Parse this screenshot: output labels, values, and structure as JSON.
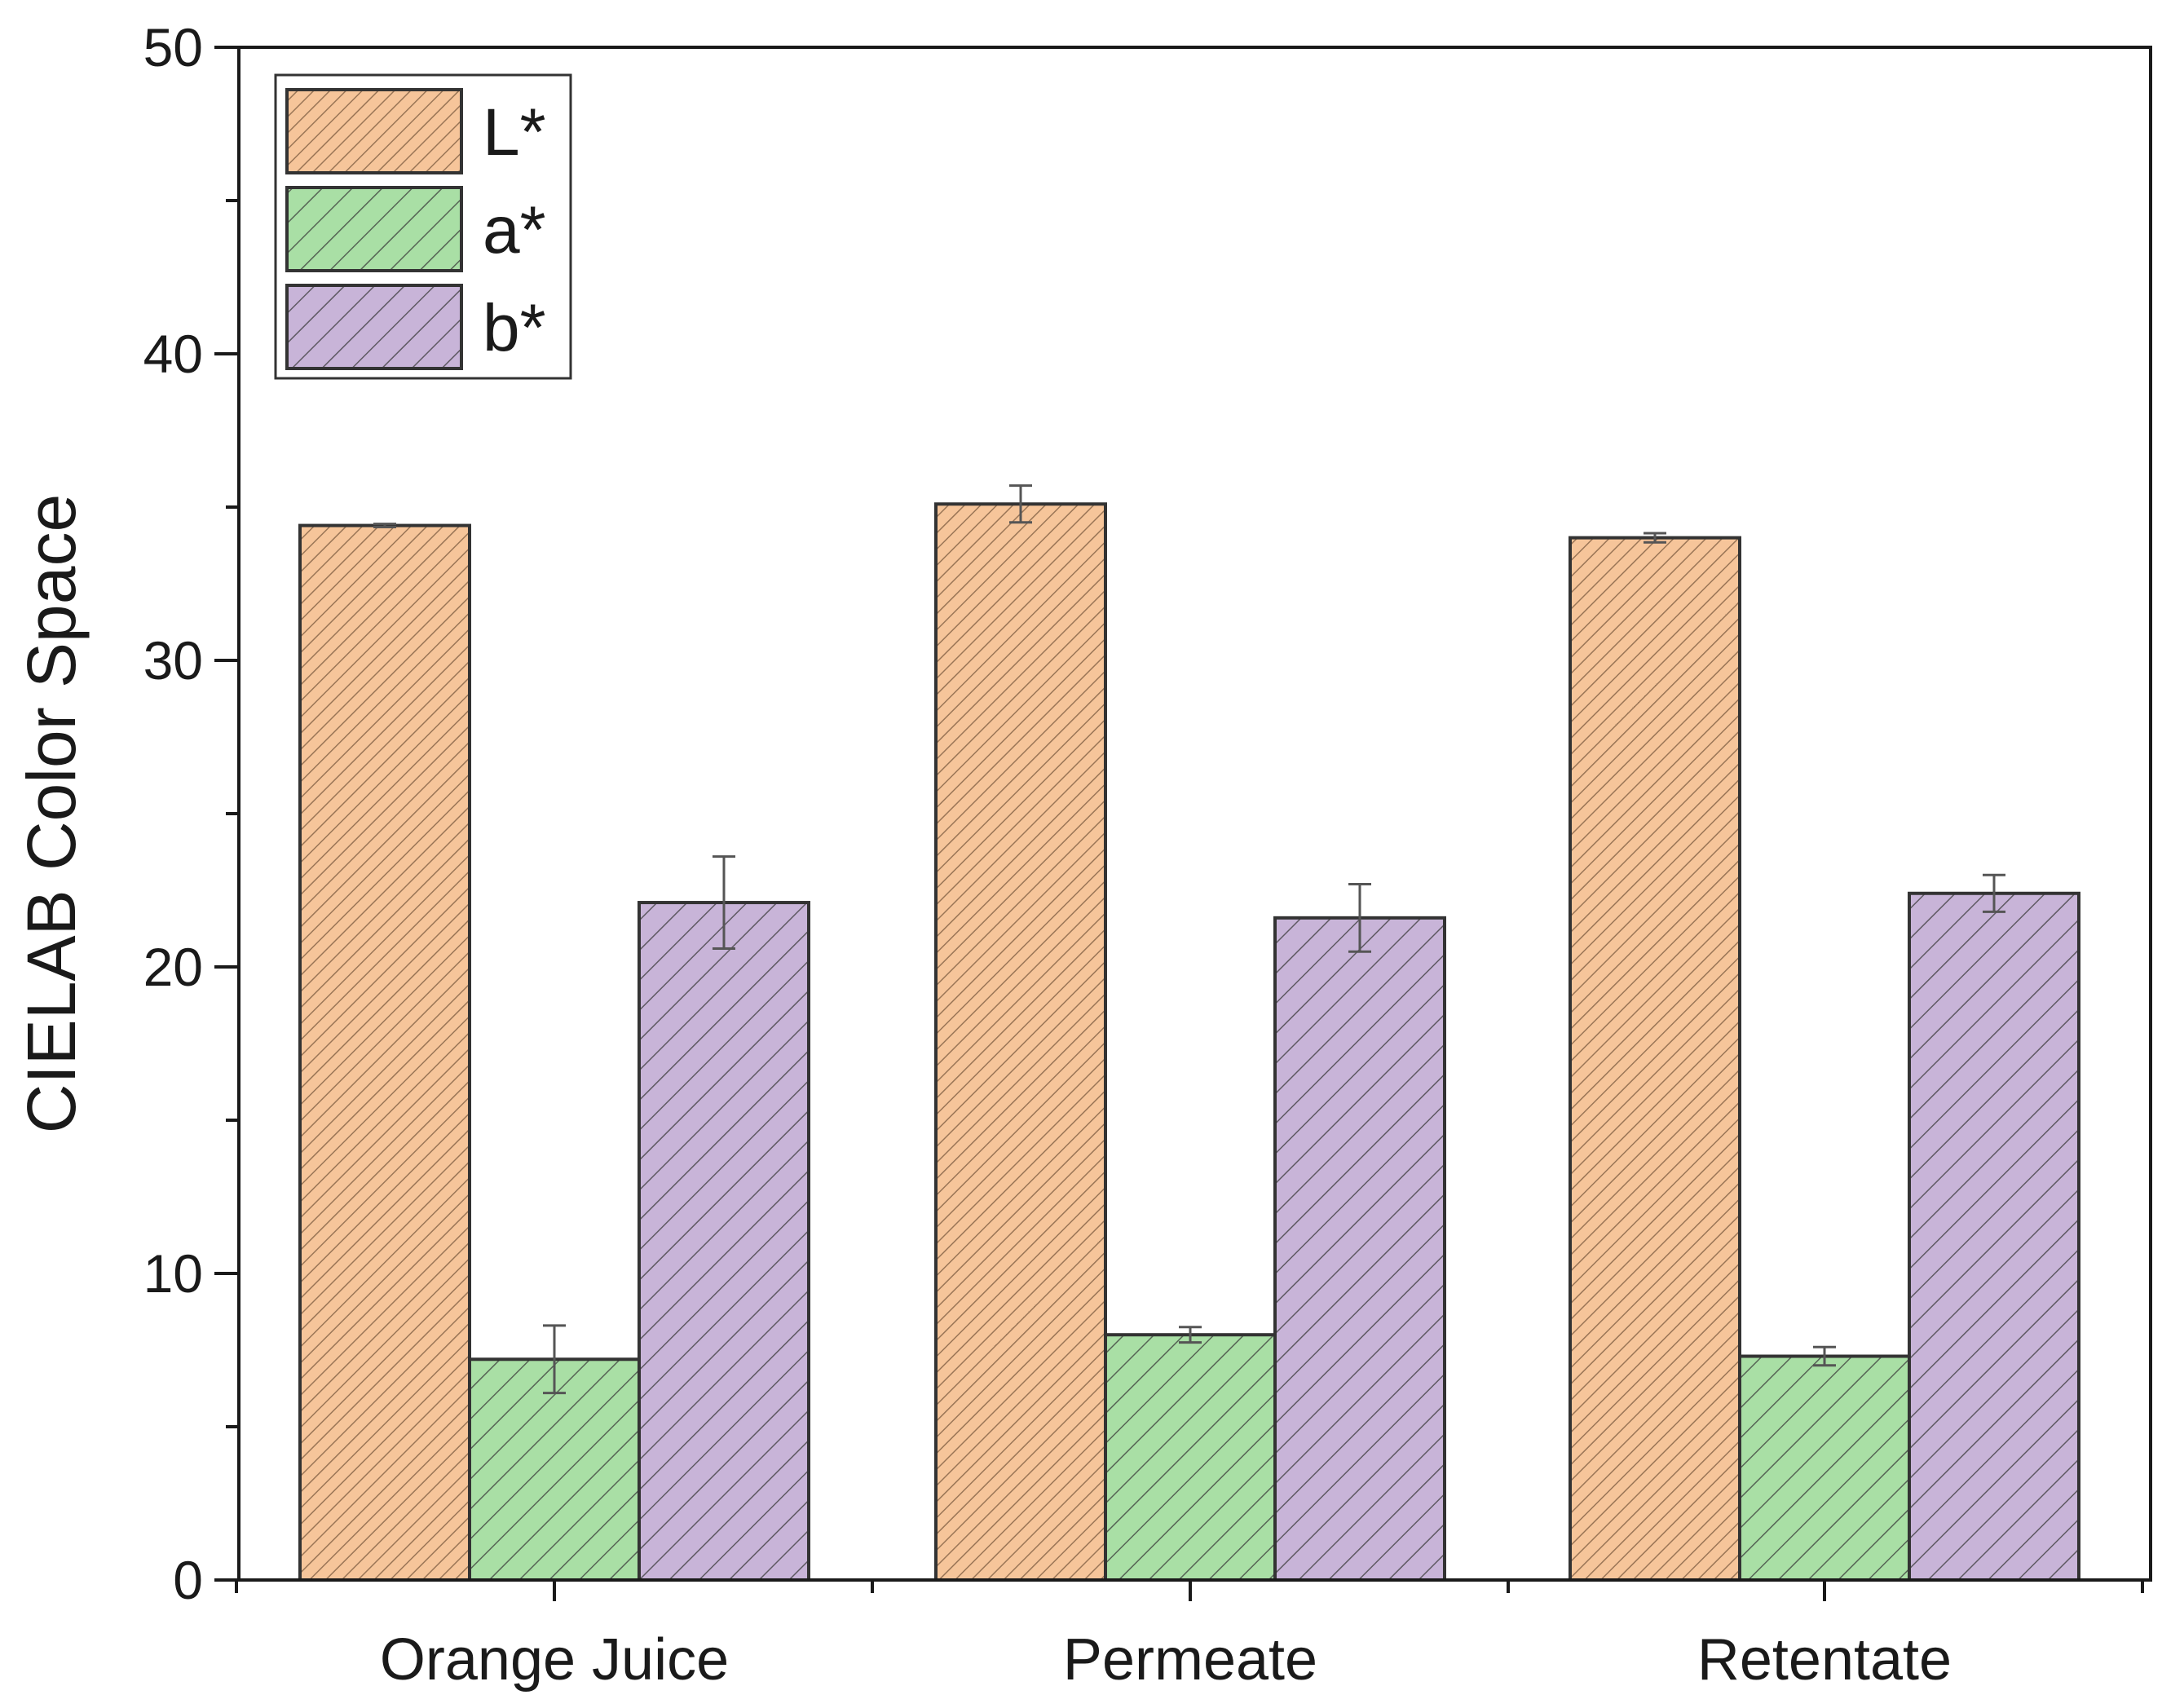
{
  "chart_data": {
    "type": "bar",
    "title": "",
    "xlabel": "",
    "ylabel": "CIELAB Color Space",
    "ylim": [
      0,
      50
    ],
    "yticks": [
      0,
      10,
      20,
      30,
      40,
      50
    ],
    "categories": [
      "Orange Juice",
      "Permeate",
      "Retentate"
    ],
    "series": [
      {
        "name": "L*",
        "color": "#F6C59A",
        "hatch": "dense-diagonal",
        "values": [
          34.4,
          35.1,
          34.0
        ],
        "errors": [
          0.05,
          0.6,
          0.15
        ]
      },
      {
        "name": "a*",
        "color": "#A9DFA5",
        "hatch": "diagonal",
        "values": [
          7.2,
          8.0,
          7.3
        ],
        "errors": [
          1.1,
          0.25,
          0.3
        ]
      },
      {
        "name": "b*",
        "color": "#C8B4D8",
        "hatch": "diagonal",
        "values": [
          22.1,
          21.6,
          22.4
        ],
        "errors": [
          1.5,
          1.1,
          0.6
        ]
      }
    ],
    "legend": "top-left",
    "grid": false
  }
}
